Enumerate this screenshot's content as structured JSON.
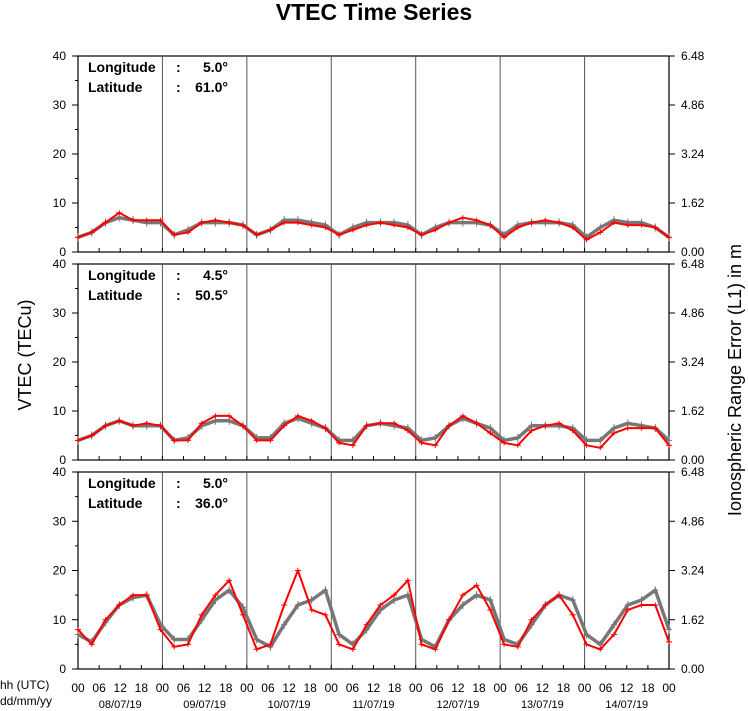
{
  "chart_data": {
    "type": "line",
    "title": "VTEC Time Series",
    "ylabel": "VTEC (TECu)",
    "y2label": "Ionospheric Range Error (L1) in m",
    "xlabel_hour": "hh (UTC)",
    "xlabel_date": "dd/mm/yy",
    "ylim": [
      0,
      40
    ],
    "y2lim": [
      0,
      6.48
    ],
    "yticks": [
      0,
      10,
      20,
      30,
      40
    ],
    "y2ticks": [
      "0.00",
      "1.62",
      "3.24",
      "4.86",
      "6.48"
    ],
    "hour_ticks": [
      "00",
      "06",
      "12",
      "18",
      "00",
      "06",
      "12",
      "18",
      "00",
      "06",
      "12",
      "18",
      "00",
      "06",
      "12",
      "18",
      "00",
      "06",
      "12",
      "18",
      "00",
      "06",
      "12",
      "18",
      "00",
      "06",
      "12",
      "18",
      "00"
    ],
    "dates": [
      "08/07/19",
      "09/07/19",
      "10/07/19",
      "11/07/19",
      "12/07/19",
      "13/07/19",
      "14/07/19"
    ],
    "grid": "vertical day separators",
    "panels": [
      {
        "longitude_label": "Longitude",
        "longitude_value": "5.0°",
        "latitude_label": "Latitude",
        "latitude_value": "61.0°",
        "series": [
          {
            "color": "#777777",
            "values": [
              3,
              4,
              6,
              7,
              6.5,
              6,
              6,
              3.5,
              4.5,
              6,
              6,
              6,
              5.5,
              3.5,
              4.5,
              6.5,
              6.5,
              6,
              5.5,
              3.5,
              5,
              6,
              6,
              6,
              5.5,
              3.5,
              5,
              6,
              6,
              6,
              5.5,
              3.5,
              5.5,
              6,
              6,
              6,
              5.5,
              3,
              5,
              6.5,
              6,
              6,
              5,
              3
            ]
          },
          {
            "color": "#ff0000",
            "values": [
              3,
              4,
              6,
              8,
              6.5,
              6.5,
              6.5,
              3.5,
              4,
              6,
              6.5,
              6,
              5.5,
              3.5,
              4.5,
              6,
              6,
              5.5,
              5,
              3.5,
              4.5,
              5.5,
              6,
              5.5,
              5,
              3.5,
              4.5,
              6,
              7,
              6.5,
              5.5,
              3,
              5,
              6,
              6.5,
              6,
              5,
              2.5,
              4,
              6,
              5.5,
              5.5,
              5,
              3
            ]
          }
        ]
      },
      {
        "longitude_label": "Longitude",
        "longitude_value": "4.5°",
        "latitude_label": "Latitude",
        "latitude_value": "50.5°",
        "series": [
          {
            "color": "#777777",
            "values": [
              4,
              5,
              7,
              8,
              7,
              7,
              7,
              4,
              4.5,
              7,
              8,
              8,
              7,
              4.5,
              4.5,
              7.5,
              8.5,
              7.5,
              6.5,
              4,
              4,
              7,
              7.5,
              7,
              6.5,
              4,
              4.5,
              7,
              8.5,
              7.5,
              6.5,
              4,
              4.5,
              7,
              7,
              7,
              6.5,
              4,
              4,
              6.5,
              7.5,
              7,
              6.5,
              4
            ]
          },
          {
            "color": "#ff0000",
            "values": [
              4,
              5,
              7,
              8,
              7,
              7.5,
              7,
              4,
              4,
              7.5,
              9,
              9,
              7,
              4,
              4,
              7,
              9,
              8,
              6.5,
              3.5,
              3,
              7,
              7.5,
              7.5,
              6,
              3.5,
              3,
              7,
              9,
              7.5,
              5.5,
              3.5,
              3,
              6,
              7,
              7.5,
              6,
              3,
              2.5,
              5.5,
              6.5,
              6.5,
              6.5,
              3
            ]
          }
        ]
      },
      {
        "longitude_label": "Longitude",
        "longitude_value": "5.0°",
        "latitude_label": "Latitude",
        "latitude_value": "36.0°",
        "series": [
          {
            "color": "#777777",
            "values": [
              7,
              5.5,
              9.5,
              13,
              14.5,
              15,
              9,
              6,
              6,
              10,
              14,
              16,
              12.5,
              6,
              4.5,
              9,
              13,
              14,
              16,
              7,
              5,
              8,
              12,
              14,
              15,
              6,
              4.5,
              10,
              13,
              15,
              14,
              6,
              5,
              9,
              13,
              15,
              14,
              7,
              5,
              9,
              13,
              14,
              16,
              8
            ]
          },
          {
            "color": "#ff0000",
            "values": [
              8,
              5,
              10,
              13,
              15,
              15,
              8,
              4.5,
              5,
              11,
              15,
              18,
              11,
              4,
              5,
              13,
              20,
              12,
              11,
              5,
              4,
              9,
              13,
              15,
              18,
              5,
              4,
              10,
              15,
              17,
              12,
              5,
              4.5,
              10,
              13,
              15,
              11,
              5,
              4,
              7,
              12,
              13,
              13,
              5.5
            ]
          }
        ]
      }
    ]
  }
}
